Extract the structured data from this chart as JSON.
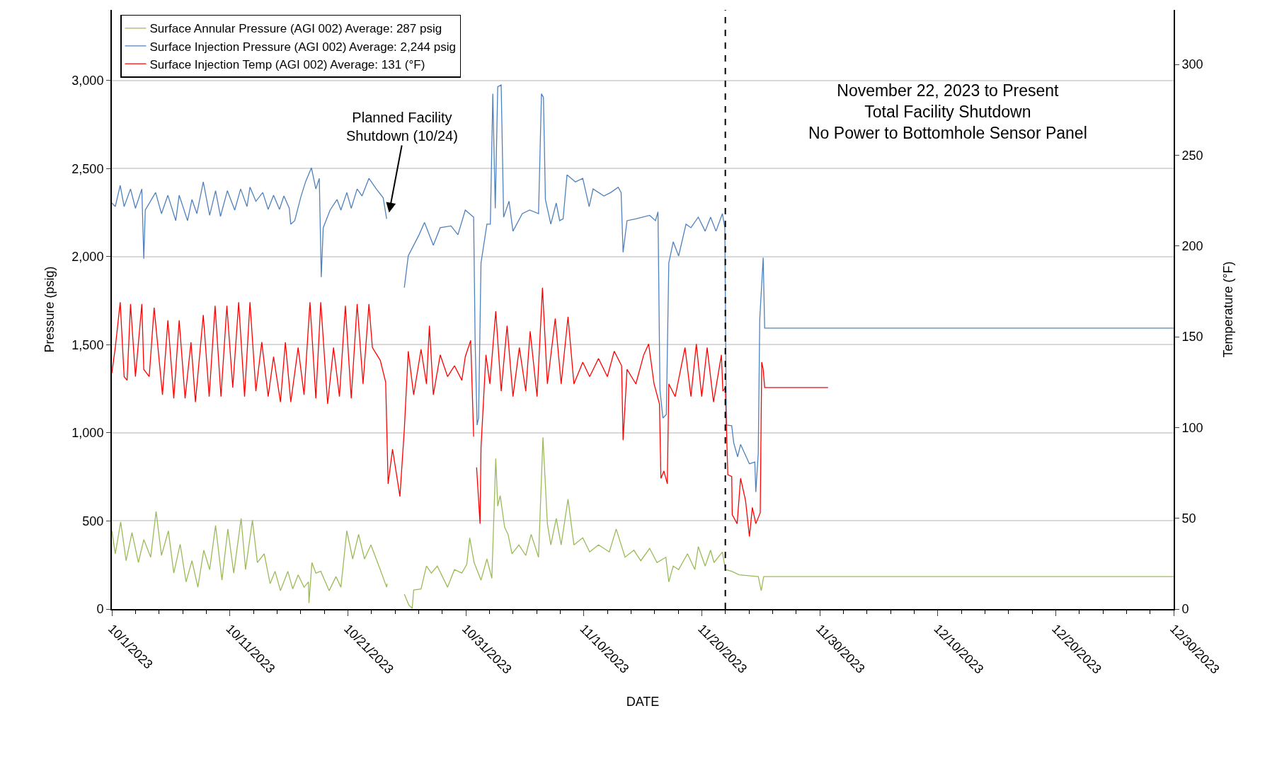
{
  "chart_data": {
    "type": "line",
    "xlabel": "DATE",
    "ylabel": "Pressure (psig)",
    "y2label": "Temperature (°F)",
    "xlim": [
      "2023-10-01",
      "2023-12-30"
    ],
    "xticks": [
      {
        "value": "2023-10-01",
        "label": "10/1/2023"
      },
      {
        "value": "2023-10-11",
        "label": "10/11/2023"
      },
      {
        "value": "2023-10-21",
        "label": "10/21/2023"
      },
      {
        "value": "2023-10-31",
        "label": "10/31/2023"
      },
      {
        "value": "2023-11-10",
        "label": "11/10/2023"
      },
      {
        "value": "2023-11-20",
        "label": "11/20/2023"
      },
      {
        "value": "2023-11-30",
        "label": "11/30/2023"
      },
      {
        "value": "2023-12-10",
        "label": "12/10/2023"
      },
      {
        "value": "2023-12-20",
        "label": "12/20/2023"
      },
      {
        "value": "2023-12-30",
        "label": "12/30/2023"
      }
    ],
    "ylim": [
      0,
      3400
    ],
    "yticks": [
      0,
      500,
      {
        "value": 1000,
        "label": "1,000"
      },
      {
        "value": 1500,
        "label": "1,500"
      },
      {
        "value": 2000,
        "label": "2,000"
      },
      {
        "value": 2500,
        "label": "2,500"
      },
      {
        "value": 3000,
        "label": "3,000"
      }
    ],
    "y2lim": [
      0,
      330
    ],
    "y2ticks": [
      0,
      50,
      100,
      150,
      200,
      250,
      300
    ],
    "grid": "y",
    "legend": "top left",
    "marker": "none",
    "line_style": "solid",
    "series": [
      {
        "name": "Surface Annular Pressure (AGI 002) Average: 287 psig",
        "color": "#9bbb59",
        "x": [
          "2023-10-01T00:00",
          "2023-10-01T07:00",
          "2023-10-01T18:00",
          "2023-10-02T05:00",
          "2023-10-02T17:00",
          "2023-10-03T06:00",
          "2023-10-03T17:00",
          "2023-10-04T07:00",
          "2023-10-04T18:00",
          "2023-10-05T05:00",
          "2023-10-05T19:00",
          "2023-10-06T06:00",
          "2023-10-06T19:00",
          "2023-10-07T07:00",
          "2023-10-07T19:00",
          "2023-10-08T07:00",
          "2023-10-08T19:00",
          "2023-10-09T07:00",
          "2023-10-09T19:00",
          "2023-10-10T08:00",
          "2023-10-10T20:00",
          "2023-10-11T08:00",
          "2023-10-11T23:00",
          "2023-10-12T08:00",
          "2023-10-12T22:00",
          "2023-10-13T08:00",
          "2023-10-13T22:00",
          "2023-10-14T10:00",
          "2023-10-14T20:00",
          "2023-10-15T07:00",
          "2023-10-15T22:00",
          "2023-10-16T08:00",
          "2023-10-16T19:00",
          "2023-10-17T07:00",
          "2023-10-17T16:00",
          "2023-10-17T17:00",
          "2023-10-17T23:00",
          "2023-10-18T07:00",
          "2023-10-18T17:00",
          "2023-10-19T10:00",
          "2023-10-20T00:00",
          "2023-10-20T10:00",
          "2023-10-20T22:00",
          "2023-10-21T10:00",
          "2023-10-21T22:00",
          "2023-10-22T10:00",
          "2023-10-22T23:00",
          "2023-10-23T18:00",
          "2023-10-24T07:00",
          "2023-10-24T08:00",
          "2023-10-25T00:00",
          "2023-10-25T19:00",
          "2023-10-26T04:00",
          "2023-10-26T11:00",
          "2023-10-26T14:00",
          "2023-10-27T05:00",
          "2023-10-27T16:00",
          "2023-10-28T02:00",
          "2023-10-28T14:00",
          "2023-10-29T11:00",
          "2023-10-30T01:00",
          "2023-10-30T16:00",
          "2023-10-31T02:00",
          "2023-10-31T08:00",
          "2023-10-31T17:00",
          "2023-11-01T07:00",
          "2023-11-01T19:00",
          "2023-11-02T05:00",
          "2023-11-02T13:00",
          "2023-11-02T17:00",
          "2023-11-02T22:00",
          "2023-11-03T07:00",
          "2023-11-03T14:00",
          "2023-11-03T22:00",
          "2023-11-04T12:00",
          "2023-11-05T02:00",
          "2023-11-05T13:00",
          "2023-11-06T04:00",
          "2023-11-06T13:00",
          "2023-11-06T22:00",
          "2023-11-07T05:00",
          "2023-11-07T16:00",
          "2023-11-08T02:00",
          "2023-11-08T16:00",
          "2023-11-09T04:00",
          "2023-11-09T22:00",
          "2023-11-10T12:00",
          "2023-11-11T06:00",
          "2023-11-12T04:00",
          "2023-11-12T18:00",
          "2023-11-13T12:00",
          "2023-11-14T06:00",
          "2023-11-14T20:00",
          "2023-11-15T14:00",
          "2023-11-16T05:00",
          "2023-11-16T23:00",
          "2023-11-17T05:00",
          "2023-11-17T14:00",
          "2023-11-18T01:00",
          "2023-11-18T19:00",
          "2023-11-19T10:00",
          "2023-11-19T17:00",
          "2023-11-20T07:00",
          "2023-11-20T18:00",
          "2023-11-21T01:00",
          "2023-11-21T18:00",
          "2023-11-22T00:00",
          "2023-11-22T13:00",
          "2023-11-23T04:00",
          "2023-11-24T19:00",
          "2023-11-25T01:00",
          "2023-11-25T06:00",
          "2023-12-30T00:00"
        ],
        "values": [
          444,
          314,
          494,
          274,
          434,
          264,
          394,
          294,
          554,
          304,
          444,
          204,
          368,
          154,
          274,
          124,
          334,
          224,
          474,
          164,
          454,
          204,
          514,
          224,
          504,
          264,
          314,
          144,
          214,
          104,
          214,
          114,
          194,
          124,
          154,
          34,
          264,
          204,
          214,
          104,
          184,
          124,
          444,
          284,
          424,
          284,
          364,
          224,
          124,
          144,
          null,
          84,
          24,
          4,
          108,
          114,
          244,
          204,
          244,
          124,
          224,
          204,
          254,
          404,
          264,
          164,
          284,
          174,
          854,
          584,
          644,
          464,
          424,
          314,
          364,
          304,
          424,
          294,
          974,
          484,
          364,
          514,
          364,
          624,
          364,
          404,
          324,
          364,
          324,
          454,
          294,
          334,
          274,
          344,
          264,
          294,
          154,
          244,
          224,
          314,
          224,
          354,
          244,
          334,
          264,
          324,
          224,
          214,
          194,
          184,
          104,
          184,
          184
        ]
      },
      {
        "name": "Surface Injection Pressure (AGI 002) Average: 2,244 psig",
        "color": "#4f81bd",
        "x": [
          "2023-10-01T00:00",
          "2023-10-01T07:00",
          "2023-10-01T17:00",
          "2023-10-02T01:00",
          "2023-10-02T14:00",
          "2023-10-03T00:00",
          "2023-10-03T13:00",
          "2023-10-03T17:00",
          "2023-10-03T20:00",
          "2023-10-04T17:00",
          "2023-10-05T05:00",
          "2023-10-05T18:00",
          "2023-10-06T10:00",
          "2023-10-06T17:00",
          "2023-10-07T10:00",
          "2023-10-07T19:00",
          "2023-10-08T05:00",
          "2023-10-08T18:00",
          "2023-10-09T07:00",
          "2023-10-09T19:00",
          "2023-10-10T05:00",
          "2023-10-10T19:00",
          "2023-10-11T10:00",
          "2023-10-11T22:00",
          "2023-10-12T11:00",
          "2023-10-12T17:00",
          "2023-10-13T05:00",
          "2023-10-13T19:00",
          "2023-10-14T06:00",
          "2023-10-14T17:00",
          "2023-10-15T05:00",
          "2023-10-15T14:00",
          "2023-10-16T01:00",
          "2023-10-16T04:00",
          "2023-10-16T12:00",
          "2023-10-17T00:00",
          "2023-10-17T10:00",
          "2023-10-17T22:00",
          "2023-10-18T07:00",
          "2023-10-18T14:00",
          "2023-10-18T18:00",
          "2023-10-18T22:00",
          "2023-10-19T12:00",
          "2023-10-20T02:00",
          "2023-10-20T10:00",
          "2023-10-20T22:00",
          "2023-10-21T07:00",
          "2023-10-21T19:00",
          "2023-10-22T05:00",
          "2023-10-22T19:00",
          "2023-10-23T10:00",
          "2023-10-24T00:00",
          "2023-10-24T07:00",
          "2023-10-25T00:00",
          "2023-10-25T19:00",
          "2023-10-26T03:00",
          "2023-10-27T01:00",
          "2023-10-27T12:00",
          "2023-10-28T06:00",
          "2023-10-28T20:00",
          "2023-10-29T18:00",
          "2023-10-30T08:00",
          "2023-10-30T23:00",
          "2023-10-31T16:00",
          "2023-10-31T19:00",
          "2023-10-31T23:00",
          "2023-11-01T02:00",
          "2023-11-01T07:00",
          "2023-11-01T19:00",
          "2023-11-02T02:00",
          "2023-11-02T07:00",
          "2023-11-02T12:00",
          "2023-11-02T17:00",
          "2023-11-03T00:00",
          "2023-11-03T05:00",
          "2023-11-03T16:00",
          "2023-11-04T00:00",
          "2023-11-04T19:00",
          "2023-11-05T10:00",
          "2023-11-06T04:00",
          "2023-11-06T10:00",
          "2023-11-06T14:00",
          "2023-11-06T18:00",
          "2023-11-07T05:00",
          "2023-11-07T16:00",
          "2023-11-07T23:00",
          "2023-11-08T06:00",
          "2023-11-08T14:00",
          "2023-11-09T07:00",
          "2023-11-09T22:00",
          "2023-11-10T11:00",
          "2023-11-10T19:00",
          "2023-11-11T17:00",
          "2023-11-12T07:00",
          "2023-11-12T22:00",
          "2023-11-13T04:00",
          "2023-11-13T08:00",
          "2023-11-13T16:00",
          "2023-11-14T10:00",
          "2023-11-15T14:00",
          "2023-11-16T02:00",
          "2023-11-16T07:00",
          "2023-11-16T11:00",
          "2023-11-16T17:00",
          "2023-11-17T00:00",
          "2023-11-17T05:00",
          "2023-11-17T14:00",
          "2023-11-18T01:00",
          "2023-11-18T16:00",
          "2023-11-19T02:00",
          "2023-11-19T17:00",
          "2023-11-20T07:00",
          "2023-11-20T18:00",
          "2023-11-21T05:00",
          "2023-11-21T18:00",
          "2023-11-21T23:00",
          "2023-11-22T02:00",
          "2023-11-22T13:00",
          "2023-11-22T17:00",
          "2023-11-23T01:00",
          "2023-11-23T07:00",
          "2023-11-24T01:00",
          "2023-11-24T12:00",
          "2023-11-24T14:00",
          "2023-11-24T19:00",
          "2023-11-24T22:00",
          "2023-11-25T05:00",
          "2023-11-25T08:00",
          "2023-12-30T00:00"
        ],
        "values": [
          2304,
          2284,
          2404,
          2284,
          2384,
          2274,
          2384,
          1988,
          2264,
          2364,
          2244,
          2348,
          2204,
          2348,
          2204,
          2324,
          2244,
          2424,
          2234,
          2374,
          2228,
          2374,
          2264,
          2384,
          2284,
          2394,
          2314,
          2364,
          2268,
          2348,
          2268,
          2344,
          2274,
          2184,
          2204,
          2334,
          2424,
          2504,
          2384,
          2444,
          1884,
          2164,
          2264,
          2324,
          2264,
          2364,
          2274,
          2384,
          2344,
          2444,
          2384,
          2334,
          2214,
          null,
          1824,
          2004,
          2124,
          2194,
          2064,
          2164,
          2174,
          2124,
          2264,
          2224,
          1524,
          1044,
          1084,
          1964,
          2184,
          2184,
          2924,
          2274,
          2964,
          2974,
          2224,
          2314,
          2144,
          2244,
          2264,
          2244,
          2924,
          2904,
          2324,
          2184,
          2304,
          2204,
          2214,
          2464,
          2424,
          2444,
          2284,
          2384,
          2344,
          2364,
          2394,
          2364,
          2024,
          2204,
          2214,
          2234,
          2204,
          2254,
          1244,
          1084,
          1104,
          1964,
          2084,
          2004,
          2184,
          2164,
          2224,
          2144,
          2224,
          2144,
          2244,
          2164,
          1044,
          1040,
          944,
          864,
          934,
          824,
          834,
          664,
          884,
          1644,
          1994,
          1594,
          1594
        ]
      },
      {
        "name": "Surface Injection Temp (AGI 002) Average: 131 (°F)",
        "color": "#ff0000",
        "axis": "y2",
        "x": [
          "2023-10-01T00:00",
          "2023-10-01T07:00",
          "2023-10-01T17:00",
          "2023-10-02T01:00",
          "2023-10-02T07:00",
          "2023-10-02T14:00",
          "2023-10-03T00:00",
          "2023-10-03T13:00",
          "2023-10-03T17:00",
          "2023-10-04T04:00",
          "2023-10-04T14:00",
          "2023-10-05T07:00",
          "2023-10-05T18:00",
          "2023-10-06T06:00",
          "2023-10-06T17:00",
          "2023-10-07T05:00",
          "2023-10-07T17:00",
          "2023-10-08T02:00",
          "2023-10-08T18:00",
          "2023-10-09T06:00",
          "2023-10-09T18:00",
          "2023-10-10T06:00",
          "2023-10-10T18:00",
          "2023-10-11T06:00",
          "2023-10-11T18:00",
          "2023-10-12T06:00",
          "2023-10-12T17:00",
          "2023-10-13T05:00",
          "2023-10-13T17:00",
          "2023-10-14T06:00",
          "2023-10-14T17:00",
          "2023-10-15T07:00",
          "2023-10-15T17:00",
          "2023-10-16T04:00",
          "2023-10-16T19:00",
          "2023-10-17T07:00",
          "2023-10-17T19:00",
          "2023-10-18T07:00",
          "2023-10-18T17:00",
          "2023-10-19T07:00",
          "2023-10-19T19:00",
          "2023-10-20T07:00",
          "2023-10-20T19:00",
          "2023-10-21T07:00",
          "2023-10-21T19:00",
          "2023-10-22T07:00",
          "2023-10-22T19:00",
          "2023-10-23T02:00",
          "2023-10-23T18:00",
          "2023-10-24T05:00",
          "2023-10-24T10:00",
          "2023-10-24T19:00",
          "2023-10-25T02:00",
          "2023-10-25T10:00",
          "2023-10-25T19:00",
          "2023-10-26T03:00",
          "2023-10-26T14:00",
          "2023-10-27T05:00",
          "2023-10-27T16:00",
          "2023-10-27T22:00",
          "2023-10-28T06:00",
          "2023-10-28T20:00",
          "2023-10-29T11:00",
          "2023-10-30T01:00",
          "2023-10-30T16:00",
          "2023-10-30T23:00",
          "2023-10-31T10:00",
          "2023-10-31T16:00",
          "2023-10-31T19:00",
          "2023-10-31T22:00",
          "2023-11-01T05:00",
          "2023-11-01T07:00",
          "2023-11-01T17:00",
          "2023-11-02T01:00",
          "2023-11-02T13:00",
          "2023-11-03T00:00",
          "2023-11-03T12:00",
          "2023-11-04T00:00",
          "2023-11-04T13:00",
          "2023-11-05T02:00",
          "2023-11-05T11:00",
          "2023-11-06T01:00",
          "2023-11-06T12:00",
          "2023-11-06T22:00",
          "2023-11-07T14:00",
          "2023-11-08T02:00",
          "2023-11-08T16:00",
          "2023-11-09T04:00",
          "2023-11-09T22:00",
          "2023-11-10T12:00",
          "2023-11-11T06:00",
          "2023-11-12T00:00",
          "2023-11-12T14:00",
          "2023-11-13T05:00",
          "2023-11-13T08:00",
          "2023-11-13T16:00",
          "2023-11-14T10:00",
          "2023-11-15T02:00",
          "2023-11-15T12:00",
          "2023-11-15T23:00",
          "2023-11-16T10:00",
          "2023-11-16T13:00",
          "2023-11-16T19:00",
          "2023-11-17T02:00",
          "2023-11-17T05:00",
          "2023-11-17T18:00",
          "2023-11-18T14:00",
          "2023-11-19T02:00",
          "2023-11-19T13:00",
          "2023-11-20T00:00",
          "2023-11-20T11:00",
          "2023-11-21T00:00",
          "2023-11-21T16:00",
          "2023-11-21T19:00",
          "2023-11-22T00:00",
          "2023-11-22T05:00",
          "2023-11-22T13:00",
          "2023-11-22T14:00",
          "2023-11-23T00:00",
          "2023-11-23T07:00",
          "2023-11-23T17:00",
          "2023-11-24T01:00",
          "2023-11-24T07:00",
          "2023-11-24T14:00",
          "2023-11-24T23:00",
          "2023-11-25T02:00",
          "2023-11-25T05:00",
          "2023-11-25T08:00",
          "2023-11-30T17:00"
        ],
        "values": [
          130,
          144,
          169,
          128,
          126,
          168,
          128,
          168,
          132,
          128,
          166,
          118,
          159,
          116,
          159,
          116,
          147,
          114,
          162,
          117,
          167,
          117,
          167,
          122,
          169,
          117,
          169,
          120,
          147,
          117,
          139,
          114,
          147,
          114,
          144,
          118,
          169,
          116,
          169,
          113,
          144,
          117,
          167,
          116,
          168,
          124,
          168,
          144,
          137,
          125,
          69,
          88,
          76,
          62,
          99,
          142,
          118,
          143,
          124,
          156,
          118,
          140,
          128,
          134,
          126,
          139,
          148,
          95,
          null,
          78,
          47,
          89,
          140,
          124,
          164,
          120,
          156,
          117,
          144,
          120,
          153,
          117,
          177,
          124,
          160,
          124,
          161,
          124,
          136,
          128,
          138,
          128,
          142,
          134,
          93,
          132,
          124,
          140,
          146,
          124,
          113,
          72,
          76,
          69,
          124,
          117,
          144,
          117,
          146,
          117,
          144,
          114,
          140,
          120,
          122,
          74,
          73,
          52,
          47,
          72,
          60,
          40,
          56,
          47,
          53,
          136,
          132,
          122,
          122
        ]
      }
    ],
    "ref_lines": [
      {
        "axis": "x",
        "value": "2023-11-22",
        "line_style": "dashed",
        "color": "#000000"
      }
    ],
    "annotations": [
      {
        "text": "Planned Facility\nShutdown (10/24)",
        "x": "2023-10-24T12:00",
        "y": 2250
      },
      "November 22, 2023 to Present\nTotal Facility Shutdown\nNo Power to Bottomhole Sensor Panel"
    ]
  }
}
